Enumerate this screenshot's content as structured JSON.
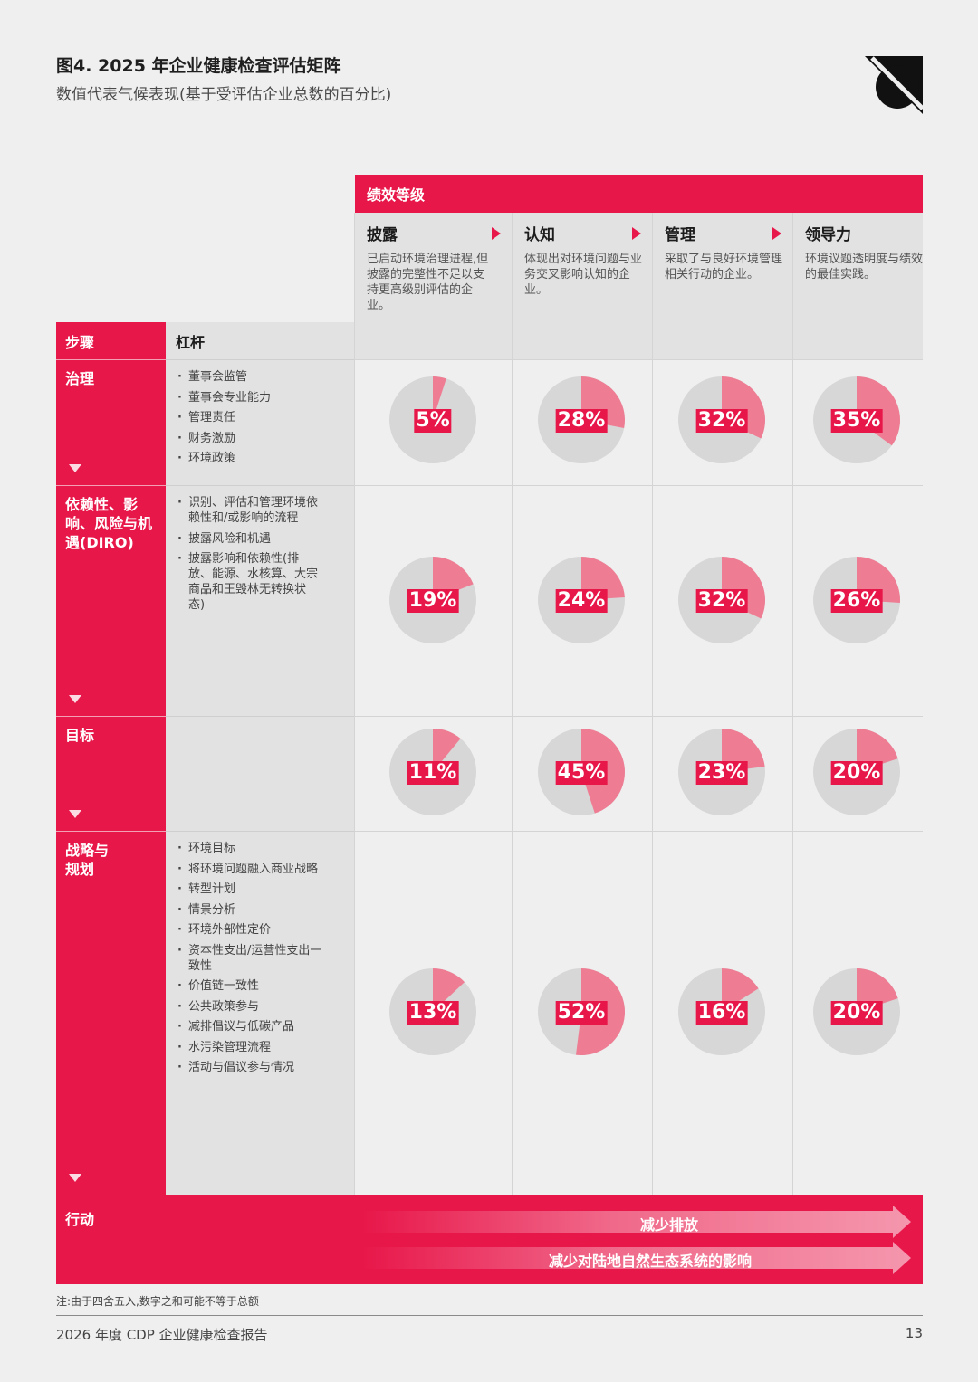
{
  "header": {
    "title": "图4. 2025 年企业健康检查评估矩阵",
    "subtitle": "数值代表气候表现(基于受评估企业总数的百分比)"
  },
  "colors": {
    "accent": "#e8174a",
    "pie_fill": "#ee7d93",
    "pie_bg": "#d7d7d7",
    "panel": "#e2e2e2"
  },
  "performance": {
    "header": "绩效等级",
    "levels": [
      {
        "name": "披露",
        "desc": "已启动环境治理进程,但披露的完整性不足以支持更高级别评估的企业。"
      },
      {
        "name": "认知",
        "desc": "体现出对环境问题与业务交叉影响认知的企业。"
      },
      {
        "name": "管理",
        "desc": "采取了与良好环境管理相关行动的企业。"
      },
      {
        "name": "领导力",
        "desc": "环境议题透明度与绩效的最佳实践。"
      }
    ]
  },
  "columns": {
    "steps": "步骤",
    "levers": "杠杆"
  },
  "rows": [
    {
      "step": "治理",
      "levers": [
        "董事会监管",
        "董事会专业能力",
        "管理责任",
        "财务激励",
        "环境政策"
      ]
    },
    {
      "step": "依赖性、影响、风险与机遇(DIRO)",
      "levers": [
        "识别、评估和管理环境依赖性和/或影响的流程",
        "披露风险和机遇",
        "披露影响和依赖性(排放、能源、水核算、大宗商品和王毁林无转换状态)"
      ]
    },
    {
      "step": "目标",
      "levers": []
    },
    {
      "step": "战略与规划",
      "levers": [
        "环境目标",
        "将环境问题融入商业战略",
        "转型计划",
        "情景分析",
        "环境外部性定价",
        "资本性支出/运营性支出一致性",
        "价值链一致性",
        "公共政策参与",
        "减排倡议与低碳产品",
        "水污染管理流程",
        "活动与倡议参与情况"
      ]
    }
  ],
  "chart_data": {
    "type": "pie",
    "levels": [
      "披露",
      "认知",
      "管理",
      "领导力"
    ],
    "steps": [
      "治理",
      "依赖性、影响、风险与机遇(DIRO)",
      "目标",
      "战略与规划"
    ],
    "values": [
      [
        5,
        28,
        32,
        35
      ],
      [
        19,
        24,
        32,
        26
      ],
      [
        11,
        45,
        23,
        20
      ],
      [
        13,
        52,
        16,
        20
      ]
    ],
    "labels": [
      [
        "5%",
        "28%",
        "32%",
        "35%"
      ],
      [
        "19%",
        "24%",
        "32%",
        "26%"
      ],
      [
        "11%",
        "45%",
        "23%",
        "20%"
      ],
      [
        "13%",
        "52%",
        "16%",
        "20%"
      ]
    ]
  },
  "action": {
    "label": "行动",
    "arrows": [
      "减少排放",
      "减少对陆地自然生态系统的影响"
    ]
  },
  "footnote": "注:由于四舍五入,数字之和可能不等于总额",
  "footer": {
    "report": "2026 年度 CDP 企业健康检查报告",
    "page": "13"
  }
}
